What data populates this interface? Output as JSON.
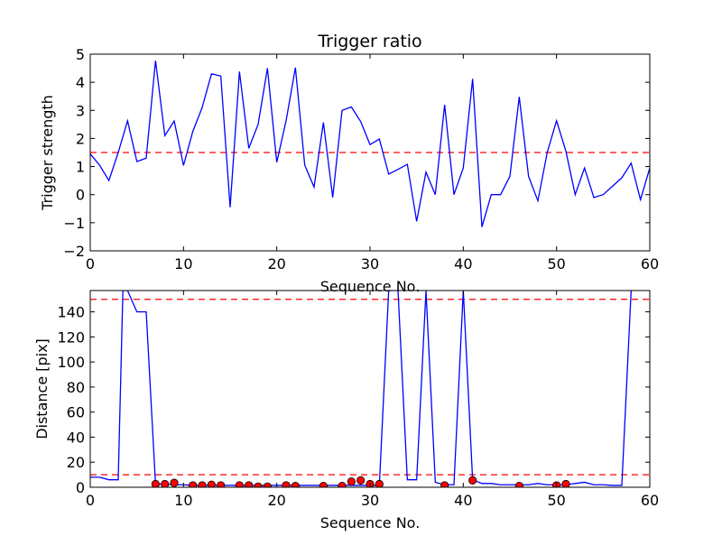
{
  "figure": {
    "background": "#ffffff"
  },
  "chart_data": [
    {
      "type": "line",
      "title": "Trigger ratio",
      "xlabel": "Sequence No.",
      "ylabel": "Trigger strength",
      "xlim": [
        0,
        60
      ],
      "ylim": [
        -2,
        5
      ],
      "xticks": [
        0,
        10,
        20,
        30,
        40,
        50,
        60
      ],
      "yticks": [
        -2,
        -1,
        0,
        1,
        2,
        3,
        4,
        5
      ],
      "grid": false,
      "series": [
        {
          "color": "#0000ff",
          "x": [
            0,
            1,
            2,
            3,
            4,
            5,
            6,
            7,
            8,
            9,
            10,
            11,
            12,
            13,
            14,
            15,
            16,
            17,
            18,
            19,
            20,
            21,
            22,
            23,
            24,
            25,
            26,
            27,
            28,
            29,
            30,
            31,
            32,
            33,
            34,
            35,
            36,
            37,
            38,
            39,
            40,
            41,
            42,
            43,
            44,
            45,
            46,
            47,
            48,
            49,
            50,
            51,
            52,
            53,
            54,
            55,
            56,
            57,
            58,
            59,
            60
          ],
          "y": [
            1.45,
            1.05,
            0.5,
            1.5,
            2.63,
            1.18,
            1.3,
            4.77,
            2.1,
            2.62,
            1.04,
            2.25,
            3.1,
            4.3,
            4.22,
            -0.45,
            4.38,
            1.65,
            2.5,
            4.5,
            1.15,
            2.63,
            4.52,
            1.05,
            0.27,
            2.57,
            -0.1,
            3.0,
            3.12,
            2.6,
            1.78,
            1.98,
            0.73,
            0.9,
            1.08,
            -0.95,
            0.8,
            0.0,
            3.2,
            0.0,
            0.95,
            4.12,
            -1.15,
            0.0,
            0.0,
            0.65,
            3.48,
            0.65,
            -0.22,
            1.5,
            2.63,
            1.55,
            0.0,
            0.95,
            -0.1,
            0.0,
            0.3,
            0.6,
            1.12,
            -0.18,
            0.95
          ]
        }
      ],
      "reference_lines": [
        {
          "orientation": "horizontal",
          "y": 1.5,
          "color": "#ff0000",
          "style": "dashed"
        }
      ]
    },
    {
      "type": "line",
      "title": "",
      "xlabel": "Sequence No.",
      "ylabel": "Distance [pix]",
      "xlim": [
        0,
        60
      ],
      "ylim": [
        0,
        157
      ],
      "xticks": [
        0,
        10,
        20,
        30,
        40,
        50,
        60
      ],
      "yticks": [
        0,
        20,
        40,
        60,
        80,
        100,
        120,
        140
      ],
      "grid": false,
      "series": [
        {
          "color": "#0000ff",
          "x": [
            0,
            1,
            2,
            3,
            3.5,
            4,
            5,
            6,
            7,
            8,
            9,
            10,
            11,
            12,
            13,
            14,
            15,
            16,
            17,
            18,
            19,
            20,
            21,
            22,
            23,
            24,
            25,
            26,
            27,
            28,
            29,
            30,
            31,
            32,
            33,
            34,
            35,
            36,
            37,
            38,
            39,
            40,
            41,
            42,
            43,
            44,
            45,
            46,
            47,
            48,
            49,
            50,
            51,
            52,
            53,
            54,
            55,
            56,
            57,
            58
          ],
          "y": [
            8,
            8,
            6,
            6,
            157,
            157,
            140,
            140,
            2.5,
            2.5,
            2,
            2,
            1.5,
            1.5,
            1.5,
            1.5,
            1.5,
            1.5,
            1.5,
            1.5,
            1.5,
            1.5,
            1.5,
            1.5,
            1.5,
            1.5,
            1.5,
            1.5,
            1.5,
            1.5,
            1.5,
            1.5,
            1.5,
            157,
            157,
            6,
            6,
            157,
            4,
            2,
            2,
            157,
            6,
            3,
            3,
            2,
            2,
            2,
            2,
            3,
            2,
            2,
            2,
            3,
            4,
            2,
            2,
            1.5,
            1.5,
            157
          ]
        },
        {
          "name": "",
          "marker": "circle",
          "line": false,
          "color": "#ff0000",
          "edge_color": "#000000",
          "x": [
            7,
            8,
            9,
            11,
            12,
            13,
            14,
            16,
            17,
            18,
            19,
            21,
            22,
            25,
            27,
            28,
            29,
            30,
            31,
            38,
            41,
            46,
            50,
            51
          ],
          "y": [
            2.5,
            2.5,
            3.5,
            1.5,
            1.5,
            2,
            1.5,
            1.5,
            1.5,
            0.5,
            0.5,
            1.5,
            1,
            1,
            1,
            4.5,
            5.5,
            2.5,
            2.5,
            1.5,
            5.5,
            1,
            1.5,
            2.5
          ]
        }
      ],
      "reference_lines": [
        {
          "orientation": "horizontal",
          "y": 10,
          "color": "#ff0000",
          "style": "dashed"
        },
        {
          "orientation": "horizontal",
          "y": 150,
          "color": "#ff0000",
          "style": "dashed"
        }
      ]
    }
  ]
}
